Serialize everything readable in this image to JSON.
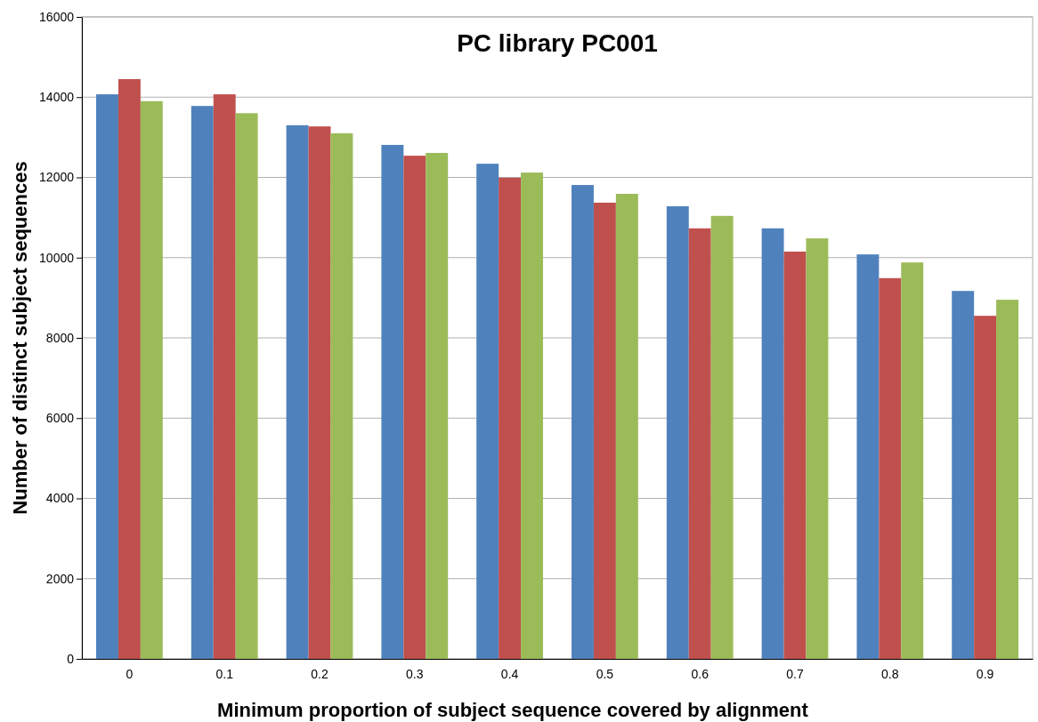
{
  "chart_data": {
    "type": "bar",
    "title": "PC library PC001",
    "xlabel": "Minimum proportion of subject sequence covered by alignment",
    "ylabel": "Number of distinct subject sequences",
    "categories": [
      "0",
      "0.1",
      "0.2",
      "0.3",
      "0.4",
      "0.5",
      "0.6",
      "0.7",
      "0.8",
      "0.9"
    ],
    "series": [
      {
        "color": "#4f81bd",
        "values": [
          14070,
          13780,
          13300,
          12810,
          12340,
          11810,
          11280,
          10730,
          10080,
          9170
        ]
      },
      {
        "color": "#c0504d",
        "values": [
          14450,
          14070,
          13270,
          12540,
          11990,
          11370,
          10730,
          10150,
          9490,
          8550
        ]
      },
      {
        "color": "#9bbb59",
        "values": [
          13900,
          13600,
          13100,
          12610,
          12120,
          11590,
          11040,
          10480,
          9880,
          8950
        ]
      }
    ],
    "ylim": [
      0,
      16000
    ],
    "yticks": [
      0,
      2000,
      4000,
      6000,
      8000,
      10000,
      12000,
      14000,
      16000
    ],
    "grid": "y"
  }
}
